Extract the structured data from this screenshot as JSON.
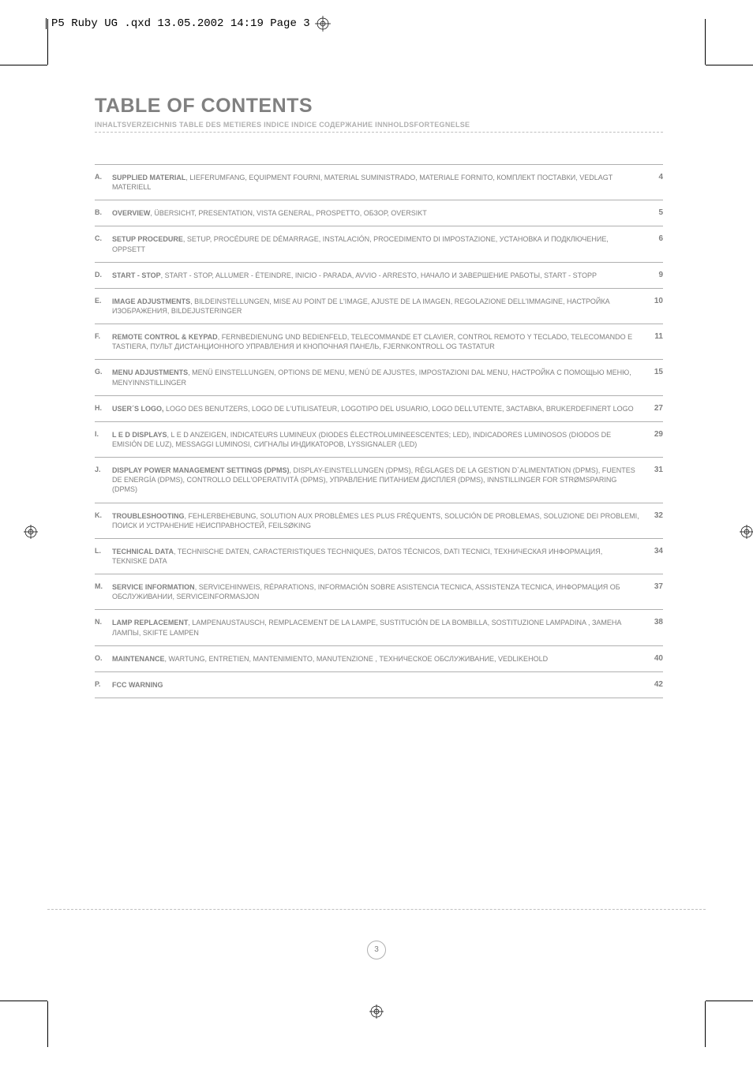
{
  "cutbox": {
    "text": "P5 Ruby UG .qxd  13.05.2002  14:19  Page 3"
  },
  "header": {
    "title": "TABLE OF CONTENTS",
    "subtitle": "INHALTSVERZEICHNIS   TABLE DES METIERES   INDICE   INDICE   СОДЕРЖАНИЕ   INNHOLDSFORTEGNELSE"
  },
  "toc": [
    {
      "letter": "A.",
      "bold": "SUPPLIED MATERIAL",
      "rest": ",   LIEFERUMFANG,   EQUIPMENT FOURNI,   MATERIAL SUMINISTRADO,   MATERIALE FORNITO,   КОМПЛЕКТ ПОСТАВКИ,   VEDLAGT MATERIELL",
      "page": "4"
    },
    {
      "letter": "B.",
      "bold": "OVERVIEW",
      "rest": ",   ÜBERSICHT,   PRESENTATION,   VISTA GENERAL,   PROSPETTO,   ОБЗОР,   OVERSIKT",
      "page": "5"
    },
    {
      "letter": "C.",
      "bold": "SETUP PROCEDURE",
      "rest": ",   SETUP,   PROCÉDURE DE DÉMARRAGE,   INSTALACIÓN,   PROCEDIMENTO DI IMPOSTAZIONE,   УСТАНОВКА И ПОДКЛЮЧЕНИЕ,   OPPSETT",
      "page": "6"
    },
    {
      "letter": "D.",
      "bold": "START - STOP",
      "rest": ",   START - STOP,   ALLUMER - ÉTEINDRE,   INICIO - PARADA,   AVVIO - ARRESTO,   НАЧАЛО И ЗАВЕРШЕНИЕ РАБОТЫ,   START - STOPP",
      "page": "9"
    },
    {
      "letter": "E.",
      "bold": "IMAGE ADJUSTMENTS",
      "rest": ",   BILDEINSTELLUNGEN,   MISE AU POINT DE L'IMAGE,   AJUSTE DE LA IMAGEN,   REGOLAZIONE DELL'IMMAGINE,   НАСТРОЙКА ИЗОБРАЖЕНИЯ,   BILDEJUSTERINGER",
      "page": "10"
    },
    {
      "letter": "F.",
      "bold": "REMOTE CONTROL & KEYPAD",
      "rest": ",   FERNBEDIENUNG UND BEDIENFELD,   TELECOMMANDE ET CLAVIER,   CONTROL REMOTO Y TECLADO,   TELECOMANDO E TASTIERA,   ПУЛЬТ ДИСТАНЦИОННОГО УПРАВЛЕНИЯ И КНОПОЧНАЯ ПАНЕЛЬ,   FJERNKONTROLL OG TASTATUR",
      "page": "11"
    },
    {
      "letter": "G.",
      "bold": "MENU ADJUSTMENTS",
      "rest": ",   MENÜ EINSTELLUNGEN,   OPTIONS DE MENU,   MENÚ DE AJUSTES,   IMPOSTAZIONI DAL MENU,   НАСТРОЙКА С ПОМОЩЬЮ МЕНЮ,   MENYINNSTILLINGER",
      "page": "15"
    },
    {
      "letter": "H.",
      "bold": "USER´S LOGO,",
      "rest": "   LOGO DES BENUTZERS,   LOGO DE L'UTILISATEUR,   LOGOTIPO DEL USUARIO,   LOGO DELL'UTENTE,   ЗАСТАВКА,   BRUKERDEFINERT LOGO",
      "page": "27"
    },
    {
      "letter": "I.",
      "bold": "L E D DISPLAYS",
      "rest": ",   L E D ANZEIGEN,   INDICATEURS LUMINEUX (DIODES ÉLECTROLUMINEESCENTES; LED),   INDICADORES LUMINOSOS  (DIODOS DE EMISIÓN DE LUZ),   MESSAGGI LUMINOSI,   СИГНАЛЫ ИНДИКАТОРОВ,   LYSSIGNALER (LED)",
      "page": "29"
    },
    {
      "letter": "J.",
      "bold": "DISPLAY POWER MANAGEMENT SETTINGS (DPMS)",
      "rest": ",   DISPLAY-EINSTELLUNGEN (DPMS),   RÉGLAGES DE LA GESTION D`ALIMENTATION (DPMS),   FUENTES DE ENERGÍA (DPMS),   CONTROLLO DELL'OPERATIVITÀ (DPMS),   УПРАВЛЕНИЕ ПИТАНИЕМ ДИСПЛЕЯ (DPMS),   INNSTILLINGER FOR STRØMSPARING (DPMS)",
      "page": "31"
    },
    {
      "letter": "K.",
      "bold": "TROUBLESHOOTING",
      "rest": ",   FEHLERBEHEBUNG,   SOLUTION AUX PROBLÈMES LES PLUS FRÉQUENTS,   SOLUCIÓN DE PROBLEMAS,   SOLUZIONE DEI PROBLEMI,   ПОИСК И УСТРАНЕНИЕ НЕИСПРАВНОСТЕЙ,   FEILSØKING",
      "page": "32"
    },
    {
      "letter": "L.",
      "bold": "TECHNICAL DATA",
      "rest": ",   TECHNISCHE DATEN,   CARACTERISTIQUES TECHNIQUES,   DATOS TÉCNICOS,   DATI TECNICI,   ТЕХНИЧЕСКАЯ ИНФОРМАЦИЯ,   TEKNISKE DATA",
      "page": "34"
    },
    {
      "letter": "M.",
      "bold": "SERVICE INFORMATION",
      "rest": ",   SERVICEHINWEIS,   RÉPARATIONS,   INFORMACIÓN SOBRE ASISTENCIA TECNICA,   ASSISTENZA TECNICA,   ИНФОРМАЦИЯ ОБ ОБСЛУЖИВАНИИ,   SERVICEINFORMASJON",
      "page": "37"
    },
    {
      "letter": "N.",
      "bold": "LAMP REPLACEMENT",
      "rest": ",   LAMPENAUSTAUSCH,   REMPLACEMENT DE LA LAMPE,   SUSTITUCIÓN DE LA BOMBILLA,   SOSTITUZIONE LAMPADINA ,   ЗАМЕНА ЛАМПЫ,   SKIFTE LAMPEN",
      "page": "38"
    },
    {
      "letter": "O.",
      "bold": "MAINTENANCE",
      "rest": ",   WARTUNG,   ENTRETIEN,   MANTENIMIENTO,   MANUTENZIONE ,   ТЕХНИЧЕСКОЕ ОБСЛУЖИВАНИЕ,   VEDLIKEHOLD",
      "page": "40"
    },
    {
      "letter": "P.",
      "bold": "FCC WARNING",
      "rest": "",
      "page": "42"
    }
  ],
  "page_number": "3",
  "colors": {
    "text": "#808080",
    "light": "#b0b0b0",
    "rule": "#b0b0b0",
    "dash": "#c0c0c0",
    "bg": "#ffffff"
  }
}
